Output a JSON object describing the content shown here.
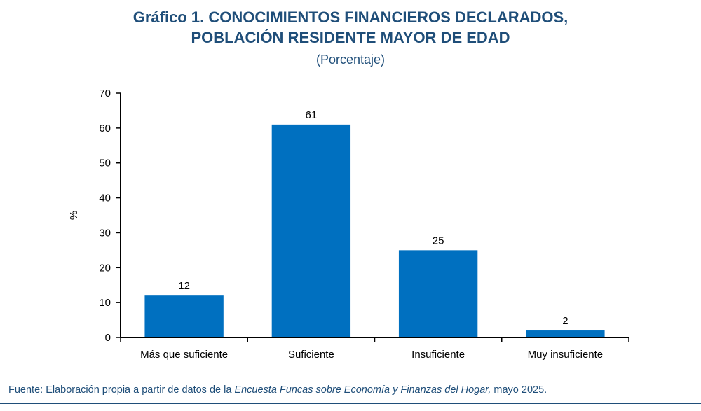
{
  "title": {
    "line1": "Gráfico 1. CONOCIMIENTOS FINANCIEROS DECLARADOS,",
    "line2": "POBLACIÓN RESIDENTE MAYOR DE EDAD",
    "subtitle": "(Porcentaje)"
  },
  "chart_data": {
    "type": "bar",
    "categories": [
      "Más que suficiente",
      "Suficiente",
      "Insuficiente",
      "Muy insuficiente"
    ],
    "values": [
      12,
      61,
      25,
      2
    ],
    "data_labels": [
      "12",
      "61",
      "25",
      "2"
    ],
    "ylabel": "%",
    "xlabel": "",
    "ylim": [
      0,
      70
    ],
    "yticks": [
      0,
      10,
      20,
      30,
      40,
      50,
      60,
      70
    ],
    "grid": false,
    "legend": "none",
    "bar_color": "#0070c0"
  },
  "source": {
    "prefix": "Fuente: Elaboración propia a partir de datos de la ",
    "italic": "Encuesta Funcas sobre Economía y Finanzas del Hogar,",
    "suffix": " mayo 2025."
  }
}
